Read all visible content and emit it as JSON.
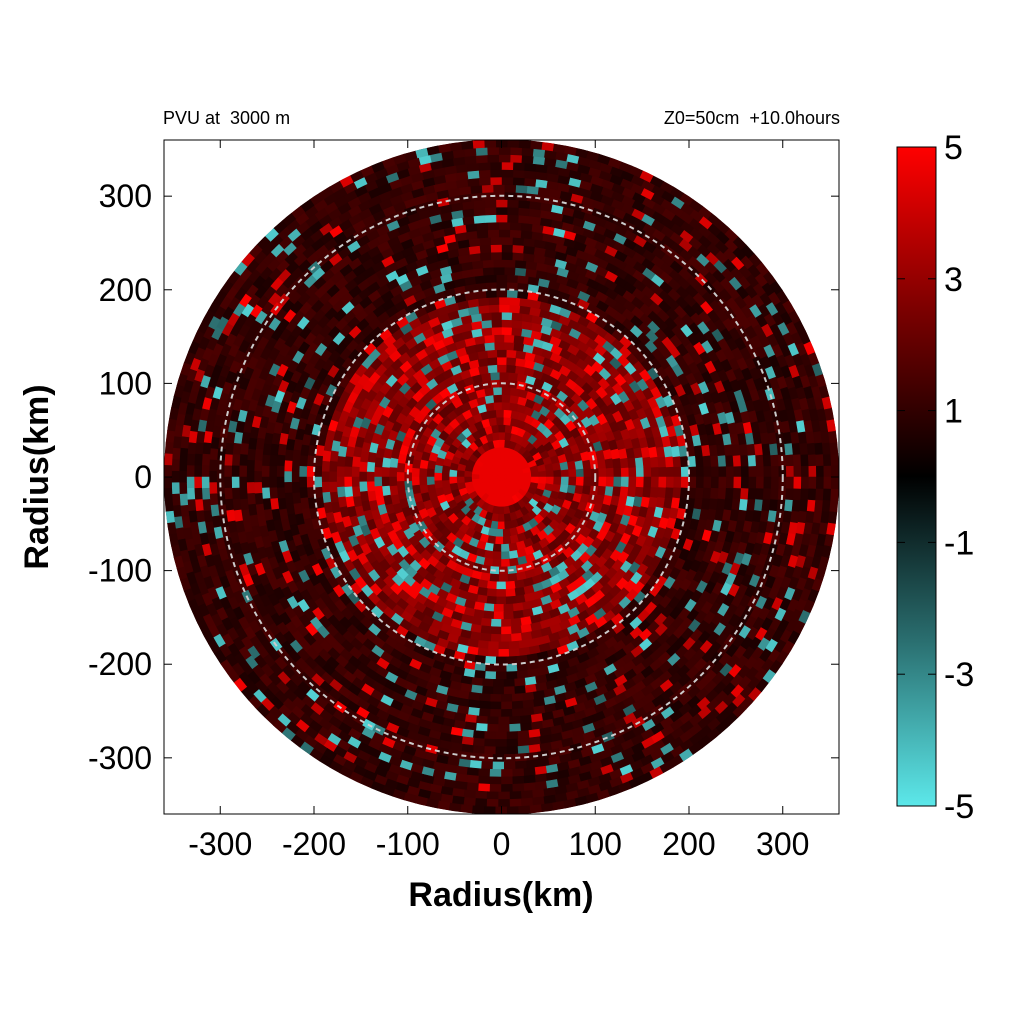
{
  "chart_data": {
    "type": "heatmap",
    "title_left": "PVU at  3000 m",
    "title_right": "Z0=50cm  +10.0hours",
    "xlabel": "Radius(km)",
    "ylabel": "Radius(km)",
    "xlim": [
      -360,
      360
    ],
    "ylim": [
      -360,
      360
    ],
    "x_ticks": [
      -300,
      -200,
      -100,
      0,
      100,
      200,
      300
    ],
    "y_ticks": [
      300,
      200,
      100,
      0,
      -100,
      -200,
      -300
    ],
    "domain_radius_km": 360,
    "reference_circles_km": [
      100,
      200,
      300
    ],
    "colorbar": {
      "range": [
        -5,
        5
      ],
      "tick_labels": [
        5,
        3,
        1,
        -1,
        -3,
        -5
      ],
      "colors": {
        "min": "#5ce8ea",
        "mid": "#000000",
        "max": "#ff0000"
      }
    },
    "field_description_values": {
      "core_max": 5,
      "inner_ring_typical": 3,
      "outer_region_typical": 0.5,
      "negative_patch_typical": -3
    }
  },
  "colors": {
    "circle_dash": "#cccccc",
    "frame": "#000000"
  }
}
